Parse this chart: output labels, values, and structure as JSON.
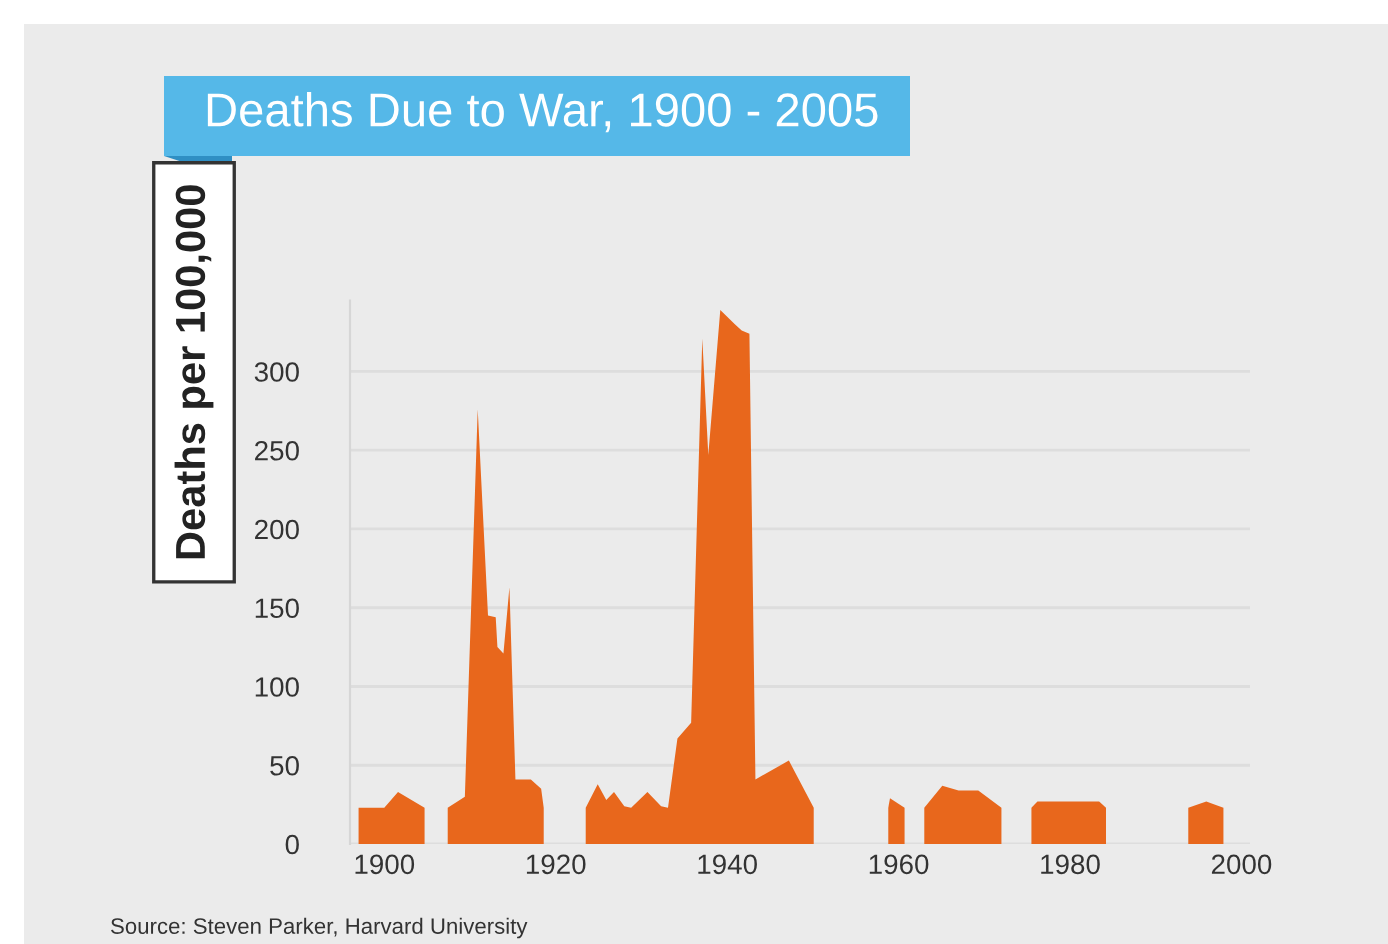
{
  "chart_data": {
    "type": "area",
    "title": "Deaths Due to War, 1900 - 2005",
    "ylabel": "Deaths per 100,000",
    "annotations": [
      "Source: Steven Parker, Harvard University"
    ],
    "x": [
      1897,
      1900,
      1901.6,
      1904.7,
      null,
      1907.4,
      1909.4,
      1910.9,
      1912.1,
      1913.0,
      1913.2,
      1913.9,
      1914.6,
      1915.3,
      1917.1,
      1918.3,
      1918.6,
      null,
      1923.5,
      1924.9,
      1925.9,
      1926.8,
      1928.0,
      1928.8,
      1930.7,
      1932.3,
      1933.1,
      1934.2,
      1935.8,
      1937.1,
      1937.8,
      1939.2,
      1940.9,
      1941.7,
      1942.6,
      1943.3,
      1947.2,
      1950.1,
      null,
      1958.8,
      1959.0,
      1960.7,
      null,
      1963.0,
      1965.1,
      1967.0,
      1969.3,
      1972.0,
      null,
      1975.5,
      1976.2,
      1983.4,
      1984.2,
      null,
      1993.8,
      1995.9,
      1997.9
    ],
    "series": [
      {
        "color": "#e8671c",
        "values": [
          23,
          23,
          33,
          23,
          null,
          23,
          30,
          276,
          145,
          144,
          125,
          121,
          163,
          41,
          41,
          35,
          23,
          null,
          23,
          38,
          28,
          33,
          24,
          23,
          33,
          24,
          23,
          67,
          77,
          321,
          247,
          339,
          330,
          326,
          324,
          41,
          53,
          23,
          null,
          23,
          29,
          23,
          null,
          23,
          37,
          34,
          34,
          23,
          null,
          23,
          27,
          27,
          23,
          null,
          23,
          27,
          23
        ]
      }
    ],
    "xlim": [
      1896,
      2001
    ],
    "xticks": [
      1900,
      1920,
      1940,
      1960,
      1980,
      2000
    ],
    "ylim": [
      0,
      345
    ],
    "yticks": [
      0,
      50,
      100,
      150,
      200,
      250,
      300
    ],
    "grid": "y",
    "legend": false
  }
}
